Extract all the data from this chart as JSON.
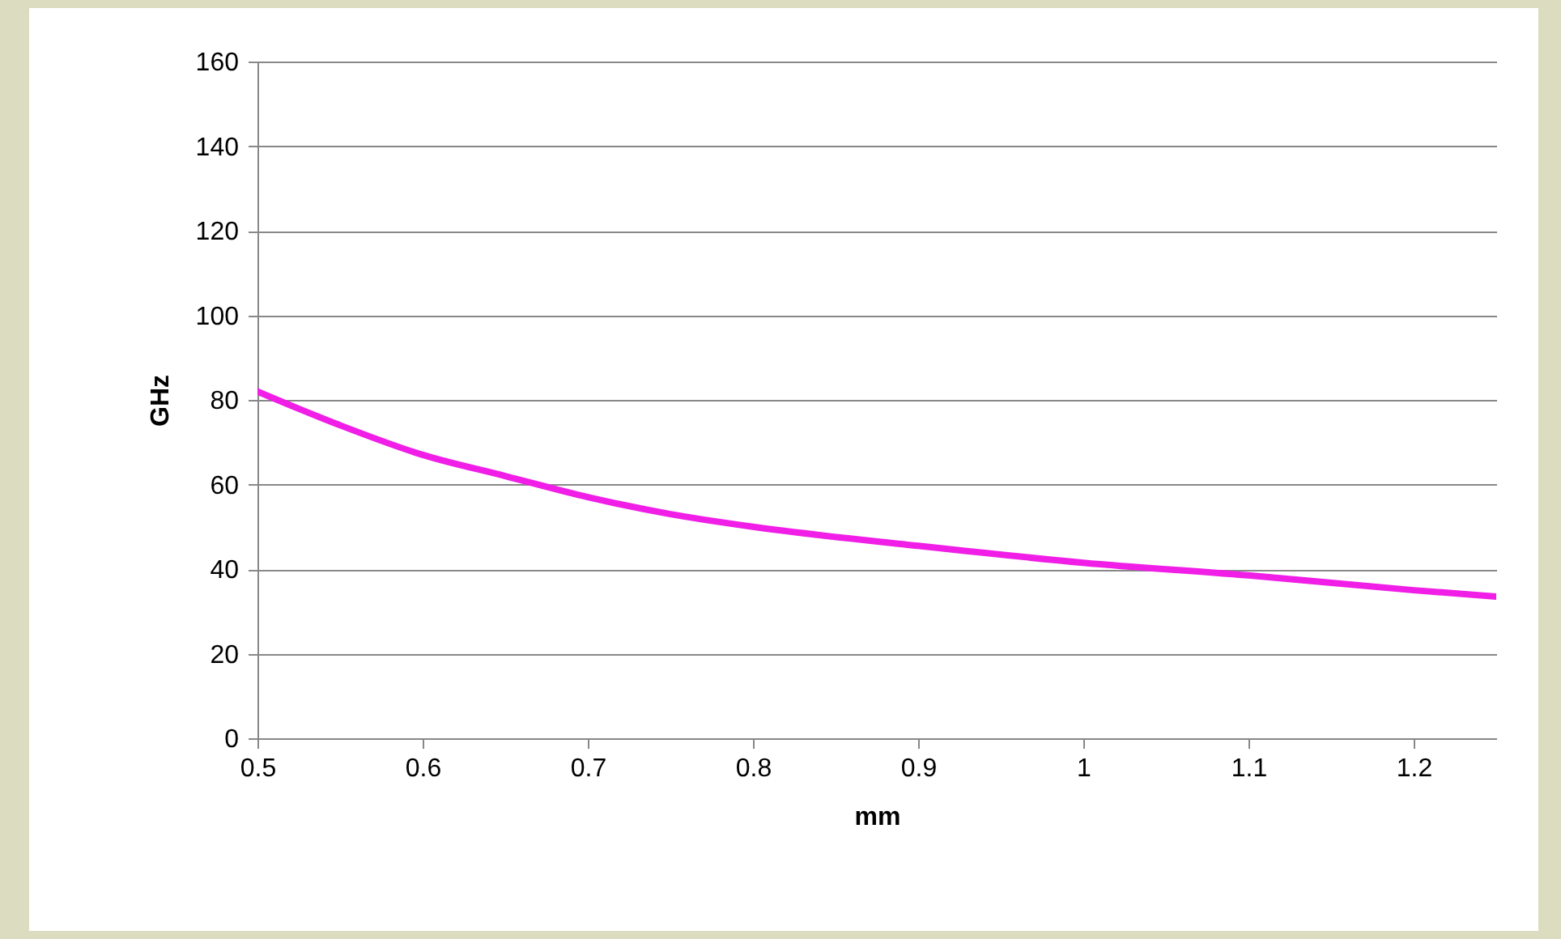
{
  "chart_data": {
    "type": "line",
    "xlabel": "mm",
    "ylabel": "GHz",
    "x": [
      0.5,
      0.55,
      0.6,
      0.65,
      0.7,
      0.75,
      0.8,
      0.9,
      1.0,
      1.1,
      1.2,
      1.25
    ],
    "series": [
      {
        "color": "#f01ee6",
        "values": [
          82,
          74,
          67,
          62,
          57,
          53,
          50,
          45.5,
          41.5,
          38.5,
          35,
          33.5
        ]
      }
    ],
    "xlim": [
      0.5,
      1.25
    ],
    "xticks": [
      0.5,
      0.6,
      0.7,
      0.8,
      0.9,
      1,
      1.1,
      1.2
    ],
    "ylim": [
      0,
      160
    ],
    "yticks": [
      0,
      20,
      40,
      60,
      80,
      100,
      120,
      140,
      160
    ],
    "grid": "y",
    "marker": "none",
    "line_style": "solid"
  }
}
